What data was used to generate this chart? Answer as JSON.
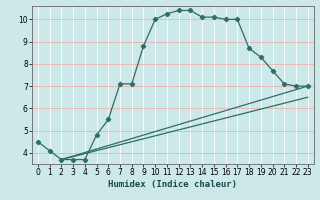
{
  "xlabel": "Humidex (Indice chaleur)",
  "bg_color": "#cce8e8",
  "plot_bg_color": "#cce8e8",
  "grid_h_color": "#e8b8b8",
  "grid_v_color": "#ffffff",
  "line_color": "#2d6e65",
  "xlim": [
    -0.5,
    23.5
  ],
  "ylim": [
    3.5,
    10.6
  ],
  "xticks": [
    0,
    1,
    2,
    3,
    4,
    5,
    6,
    7,
    8,
    9,
    10,
    11,
    12,
    13,
    14,
    15,
    16,
    17,
    18,
    19,
    20,
    21,
    22,
    23
  ],
  "yticks": [
    4,
    5,
    6,
    7,
    8,
    9,
    10
  ],
  "series1_x": [
    0,
    1,
    2,
    3,
    4,
    5,
    6,
    7,
    8,
    9,
    10,
    11,
    12,
    13,
    14,
    15,
    16,
    17,
    18,
    19,
    20,
    21,
    22,
    23
  ],
  "series1_y": [
    4.5,
    4.1,
    3.7,
    3.7,
    3.7,
    4.8,
    5.5,
    7.1,
    7.1,
    8.8,
    10.0,
    10.25,
    10.4,
    10.4,
    10.1,
    10.1,
    10.0,
    10.0,
    8.7,
    8.3,
    7.7,
    7.1,
    7.0,
    7.0
  ],
  "series2_x": [
    2,
    23
  ],
  "series2_y": [
    3.7,
    7.0
  ],
  "series3_x": [
    2,
    23
  ],
  "series3_y": [
    3.7,
    6.5
  ],
  "tick_fontsize": 5.5,
  "xlabel_fontsize": 6.5
}
